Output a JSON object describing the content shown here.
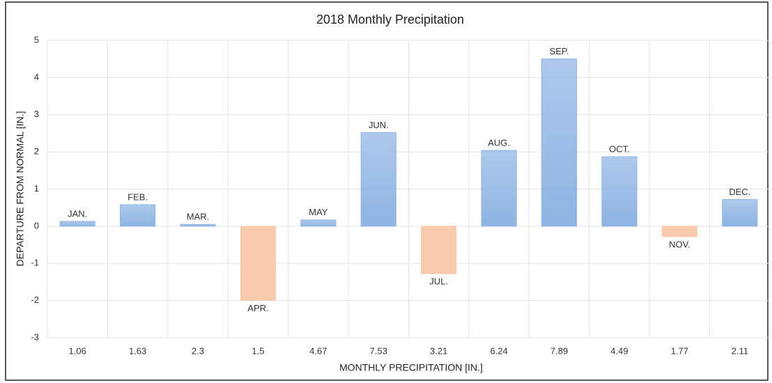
{
  "chart_data": {
    "type": "bar",
    "title": "2018 Monthly Precipitation",
    "x_label": "MONTHLY PRECIPITATION  [IN.]",
    "y_label": "DEPARTURE  FROM NORMAL [IN.]",
    "categories": [
      "1.06",
      "1.63",
      "2.3",
      "1.5",
      "4.67",
      "7.53",
      "3.21",
      "6.24",
      "7.89",
      "4.49",
      "1.77",
      "2.11"
    ],
    "values": [
      0.13,
      0.58,
      0.05,
      -2.0,
      0.17,
      2.52,
      -1.28,
      2.04,
      4.5,
      1.87,
      -0.28,
      0.72
    ],
    "labels": [
      "JAN.",
      "FEB.",
      "MAR.",
      "APR.",
      "MAY",
      "JUN.",
      "JUL.",
      "AUG.",
      "SEP.",
      "OCT.",
      "NOV.",
      "DEC."
    ],
    "color": "#8eb4e3",
    "negative_color": "#f8cbad",
    "ylim": [
      -3,
      5
    ],
    "yticks": [
      -3,
      -2,
      -1,
      0,
      1,
      2,
      3,
      4,
      5
    ],
    "grid": true
  }
}
